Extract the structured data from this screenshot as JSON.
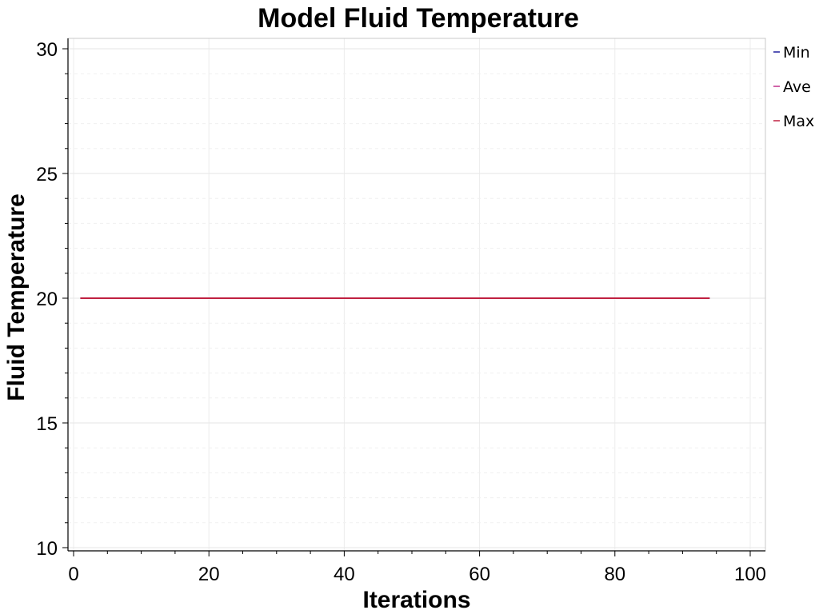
{
  "chart_data": {
    "type": "line",
    "title": "Model Fluid Temperature",
    "xlabel": "Iterations",
    "ylabel": "Fluid Temperature",
    "xlim": [
      0,
      100
    ],
    "ylim": [
      10,
      30
    ],
    "x_ticks": [
      0,
      20,
      40,
      60,
      80,
      100
    ],
    "y_ticks": [
      10,
      15,
      20,
      25,
      30
    ],
    "grid": true,
    "legend_position": "right",
    "series": [
      {
        "name": "Min",
        "color": "#1f1f9e",
        "x": [
          1,
          94
        ],
        "y": [
          20,
          20
        ]
      },
      {
        "name": "Ave",
        "color": "#c0308a",
        "x": [
          1,
          94
        ],
        "y": [
          20,
          20
        ]
      },
      {
        "name": "Max",
        "color": "#c02040",
        "x": [
          1,
          94
        ],
        "y": [
          20,
          20
        ]
      }
    ]
  }
}
